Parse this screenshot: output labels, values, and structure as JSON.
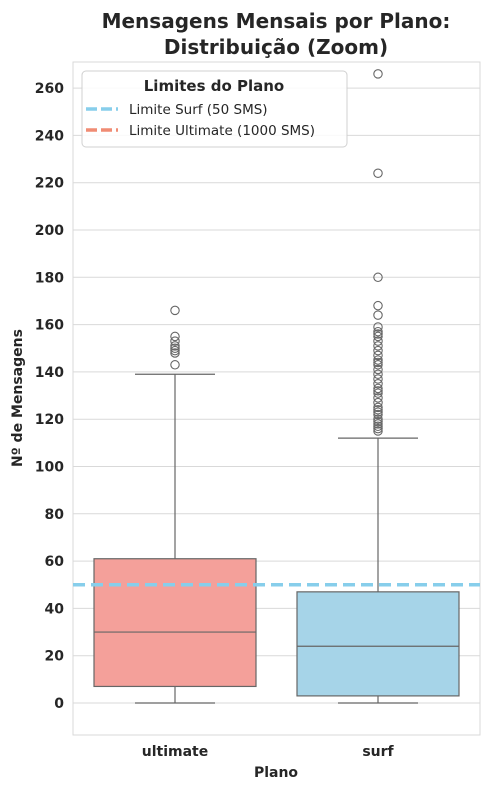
{
  "chart_data": {
    "type": "box",
    "title": "Mensagens Mensais por Plano:",
    "subtitle": "Distribuição (Zoom)",
    "xlabel": "Plano",
    "ylabel": "Nº de Mensagens",
    "ylim": [
      -14,
      272
    ],
    "yticks": [
      0,
      20,
      40,
      60,
      80,
      100,
      120,
      140,
      160,
      180,
      200,
      220,
      240,
      260
    ],
    "grid": true,
    "categories": [
      "ultimate",
      "surf"
    ],
    "boxes": [
      {
        "category": "ultimate",
        "color": "#F4A09A",
        "whisker_low": 0,
        "q1": 7,
        "median": 30,
        "q3": 61,
        "whisker_high": 139,
        "outliers": [
          143,
          148,
          149,
          150,
          151,
          153,
          155,
          166
        ]
      },
      {
        "category": "surf",
        "color": "#A6D4E8",
        "whisker_low": 0,
        "q1": 3,
        "median": 24,
        "q3": 47,
        "whisker_high": 112,
        "outliers": [
          115,
          116,
          117,
          118,
          119,
          120,
          122,
          123,
          124,
          125,
          127,
          129,
          131,
          132,
          133,
          135,
          137,
          139,
          141,
          143,
          144,
          145,
          147,
          149,
          151,
          153,
          155,
          156,
          157,
          159,
          164,
          168,
          180,
          224,
          266
        ]
      }
    ],
    "reference_lines": [
      {
        "name": "Limite Surf (50 SMS)",
        "value": 50,
        "color": "#87CEEB",
        "dashed": true
      },
      {
        "name": "Limite Ultimate (1000 SMS)",
        "value": 1000,
        "color": "#F08C74",
        "dashed": true
      }
    ],
    "legend": {
      "title": "Limites do Plano",
      "placement": "top-left",
      "entries": [
        "Limite Surf (50 SMS)",
        "Limite Ultimate (1000 SMS)"
      ]
    }
  }
}
